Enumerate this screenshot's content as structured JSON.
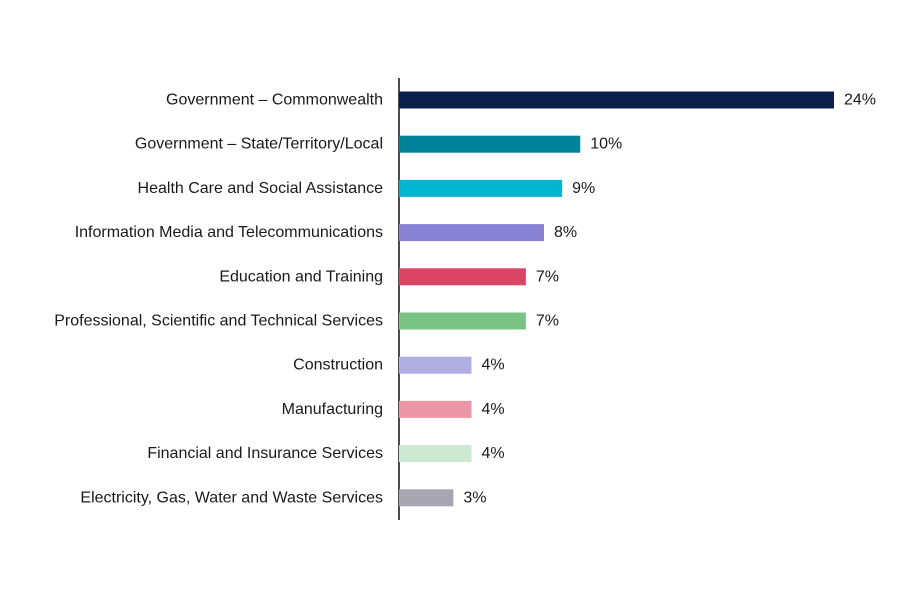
{
  "chart_data": {
    "type": "bar",
    "orientation": "horizontal",
    "categories": [
      "Government – Commonwealth",
      "Government – State/Territory/Local",
      "Health Care and Social Assistance",
      "Information Media and Telecommunications",
      "Education and Training",
      "Professional, Scientific and Technical Services",
      "Construction",
      "Manufacturing",
      "Financial and Insurance Services",
      "Electricity, Gas, Water and Waste Services"
    ],
    "values": [
      24,
      10,
      9,
      8,
      7,
      7,
      4,
      4,
      4,
      3
    ],
    "value_labels": [
      "24%",
      "10%",
      "9%",
      "8%",
      "7%",
      "7%",
      "4%",
      "4%",
      "4%",
      "3%"
    ],
    "colors": [
      "#0b1f4b",
      "#00849a",
      "#00b5cf",
      "#8a82d4",
      "#dc4466",
      "#7ac385",
      "#b0aee2",
      "#ec95a6",
      "#cde9d2",
      "#a8a7b1"
    ],
    "value_unit": "%",
    "xlim": [
      0,
      24
    ],
    "grid": false,
    "legend": "none"
  }
}
